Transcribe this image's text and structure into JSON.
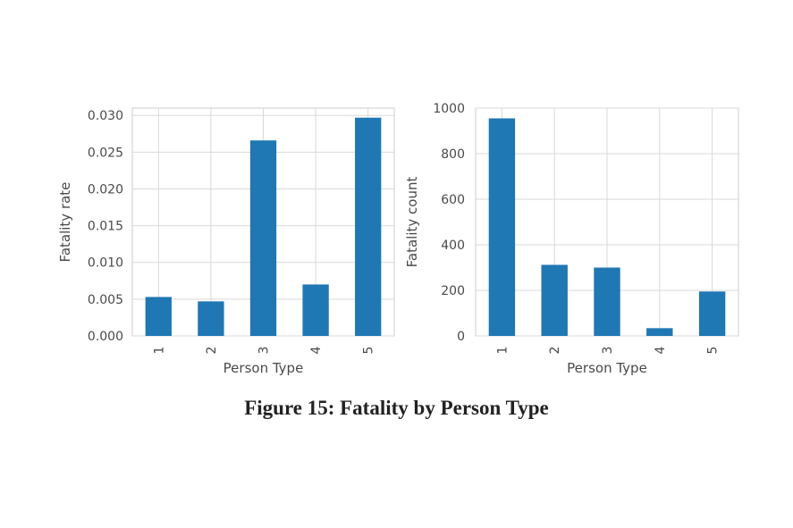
{
  "caption": "Figure 15: Fatality by Person Type",
  "chart_data": [
    {
      "type": "bar",
      "categories": [
        "1",
        "2",
        "3",
        "4",
        "5"
      ],
      "values": [
        0.0053,
        0.0047,
        0.0266,
        0.007,
        0.0297
      ],
      "xlabel": "Person Type",
      "ylabel": "Fatality rate",
      "ylim": [
        0,
        0.031
      ],
      "yticks": [
        "0.000",
        "0.005",
        "0.010",
        "0.015",
        "0.020",
        "0.025",
        "0.030"
      ],
      "ytick_values": [
        0,
        0.005,
        0.01,
        0.015,
        0.02,
        0.025,
        0.03
      ],
      "grid": true,
      "color": "#1f77b4"
    },
    {
      "type": "bar",
      "categories": [
        "1",
        "2",
        "3",
        "4",
        "5"
      ],
      "values": [
        955,
        312,
        300,
        34,
        195
      ],
      "xlabel": "Person Type",
      "ylabel": "Fatality count",
      "ylim": [
        0,
        1000
      ],
      "yticks": [
        "0",
        "200",
        "400",
        "600",
        "800",
        "1000"
      ],
      "ytick_values": [
        0,
        200,
        400,
        600,
        800,
        1000
      ],
      "grid": true,
      "color": "#1f77b4"
    }
  ]
}
